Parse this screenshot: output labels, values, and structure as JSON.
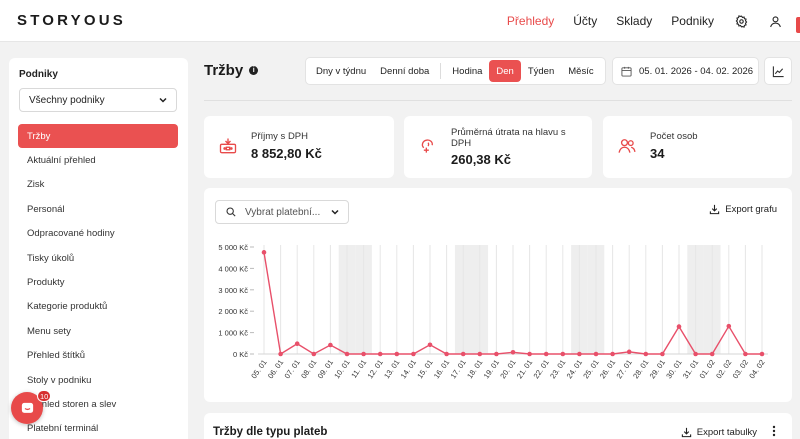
{
  "brand": {
    "logo": "STORYOUS",
    "accent": "#e84a4a"
  },
  "topnav": {
    "items": [
      {
        "label": "Přehledy",
        "active": true
      },
      {
        "label": "Účty",
        "active": false
      },
      {
        "label": "Sklady",
        "active": false
      },
      {
        "label": "Podniky",
        "active": false
      }
    ],
    "icons": [
      "gear-icon",
      "user-icon"
    ]
  },
  "sidebar": {
    "section_label": "Podniky",
    "venue_select": "Všechny podniky",
    "items": [
      {
        "label": "Tržby",
        "active": true
      },
      {
        "label": "Aktuální přehled"
      },
      {
        "label": "Zisk"
      },
      {
        "label": "Personál"
      },
      {
        "label": "Odpracované hodiny"
      },
      {
        "label": "Tisky úkolů"
      },
      {
        "label": "Produkty"
      },
      {
        "label": "Kategorie produktů"
      },
      {
        "label": "Menu sety"
      },
      {
        "label": "Přehled štítků"
      },
      {
        "label": "Stoly v podniku"
      },
      {
        "label": "Přehled storen a slev"
      },
      {
        "label": "Platební terminál"
      }
    ]
  },
  "chat": {
    "badge": "10"
  },
  "header": {
    "title": "Tržby",
    "segments": [
      {
        "label": "Dny v týdnu",
        "active": false
      },
      {
        "label": "Denní doba",
        "active": false
      },
      {
        "label": "Hodina",
        "active": false
      },
      {
        "label": "Den",
        "active": true
      },
      {
        "label": "Týden",
        "active": false
      },
      {
        "label": "Měsíc",
        "active": false
      }
    ],
    "date_range": "05. 01. 2026 - 04. 02. 2026"
  },
  "stats": [
    {
      "label": "Příjmy s DPH",
      "value": "8 852,80 Kč",
      "icon": "cash-register-icon"
    },
    {
      "label": "Průměrná útrata na hlavu s DPH",
      "value": "260,38 Kč",
      "icon": "tip-hand-icon"
    },
    {
      "label": "Počet osob",
      "value": "34",
      "icon": "people-icon"
    }
  ],
  "chart_panel": {
    "payment_select_placeholder": "Vybrat platební...",
    "export_label": "Export grafu"
  },
  "table_panel": {
    "title": "Tržby dle typu plateb",
    "export_label": "Export tabulky"
  },
  "chart_data": {
    "type": "line",
    "title": "",
    "xlabel": "",
    "ylabel": "",
    "series_color": "#e8506a",
    "weekend_shade_color": "#eeeeee",
    "ylim": [
      0,
      5000
    ],
    "yticks": [
      {
        "v": 0,
        "label": "0 Kč"
      },
      {
        "v": 1000,
        "label": "1 000 Kč"
      },
      {
        "v": 2000,
        "label": "2 000 Kč"
      },
      {
        "v": 3000,
        "label": "3 000 Kč"
      },
      {
        "v": 4000,
        "label": "4 000 Kč"
      },
      {
        "v": 5000,
        "label": "5 000 Kč"
      }
    ],
    "categories": [
      "05. 01",
      "06. 01",
      "07. 01",
      "08. 01",
      "09. 01",
      "10. 01",
      "11. 01",
      "12. 01",
      "13. 01",
      "14. 01",
      "15. 01",
      "16. 01",
      "17. 01",
      "18. 01",
      "19. 01",
      "20. 01",
      "21. 01",
      "22. 01",
      "23. 01",
      "24. 01",
      "25. 01",
      "26. 01",
      "27. 01",
      "28. 01",
      "29. 01",
      "30. 01",
      "31. 01",
      "01. 02",
      "02. 02",
      "03. 02",
      "04. 02"
    ],
    "values": [
      4750,
      0,
      480,
      0,
      420,
      0,
      0,
      0,
      0,
      0,
      430,
      0,
      0,
      0,
      0,
      80,
      0,
      0,
      0,
      0,
      0,
      0,
      100,
      0,
      0,
      1280,
      0,
      0,
      1300,
      0,
      0
    ],
    "shaded_categories": [
      "10. 01",
      "11. 01",
      "17. 01",
      "18. 01",
      "24. 01",
      "25. 01",
      "31. 01",
      "01. 02"
    ],
    "grid": "vertical"
  }
}
